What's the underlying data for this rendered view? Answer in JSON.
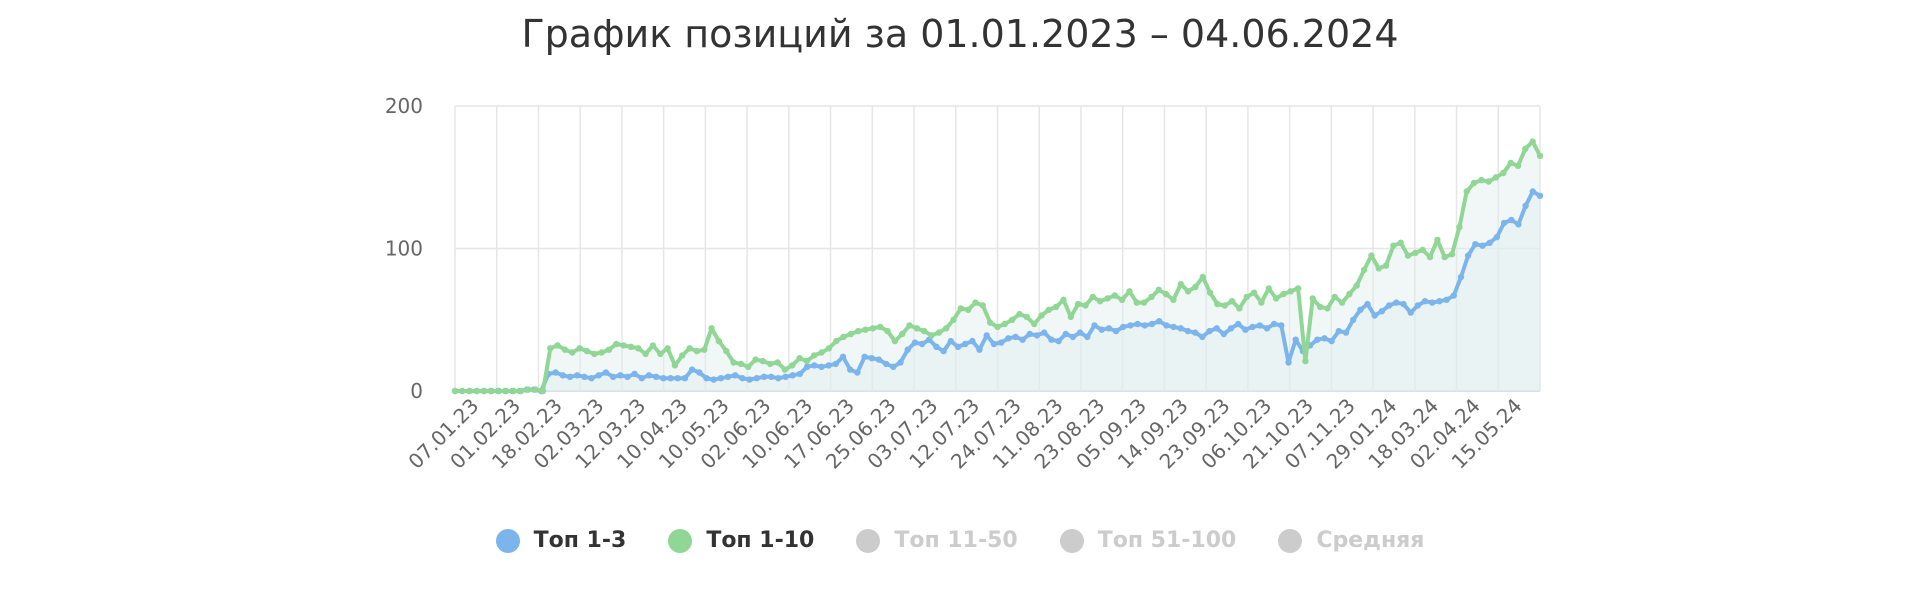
{
  "chart_data": {
    "type": "line",
    "title": "График позиций за 01.01.2023 – 04.06.2024",
    "ylim": [
      0,
      200
    ],
    "yticks": [
      0,
      100,
      200
    ],
    "x_tick_labels": [
      "07.01.23",
      "01.02.23",
      "18.02.23",
      "02.03.23",
      "12.03.23",
      "10.04.23",
      "10.05.23",
      "02.06.23",
      "10.06.23",
      "17.06.23",
      "25.06.23",
      "03.07.23",
      "12.07.23",
      "24.07.23",
      "11.08.23",
      "23.08.23",
      "05.09.23",
      "14.09.23",
      "23.09.23",
      "06.10.23",
      "21.10.23",
      "07.11.23",
      "29.01.24",
      "18.03.24",
      "02.04.24",
      "15.05.24"
    ],
    "grid": true,
    "legend_position": "bottom",
    "series": [
      {
        "name": "Топ 1-3",
        "color": "#7cb5ec",
        "visible": true,
        "values": [
          0,
          0,
          0,
          0,
          0,
          0,
          0,
          0,
          0,
          0,
          1,
          1,
          0,
          12,
          13,
          11,
          10,
          11,
          10,
          9,
          11,
          13,
          10,
          11,
          10,
          12,
          9,
          11,
          10,
          9,
          9,
          9,
          9,
          15,
          13,
          9,
          8,
          9,
          10,
          11,
          9,
          8,
          9,
          10,
          10,
          9,
          10,
          11,
          12,
          17,
          18,
          17,
          18,
          19,
          24,
          15,
          13,
          24,
          23,
          22,
          19,
          17,
          20,
          29,
          34,
          33,
          36,
          31,
          28,
          35,
          31,
          33,
          35,
          29,
          39,
          33,
          34,
          37,
          38,
          36,
          40,
          39,
          41,
          36,
          35,
          40,
          38,
          41,
          38,
          46,
          43,
          44,
          42,
          45,
          46,
          47,
          46,
          47,
          49,
          46,
          45,
          44,
          42,
          41,
          38,
          42,
          44,
          40,
          44,
          47,
          43,
          45,
          46,
          44,
          47,
          46,
          20,
          36,
          28,
          32,
          36,
          37,
          35,
          42,
          41,
          50,
          57,
          61,
          53,
          56,
          60,
          62,
          61,
          55,
          60,
          63,
          62,
          63,
          64,
          67,
          80,
          95,
          103,
          102,
          104,
          108,
          118,
          120,
          117,
          130,
          140,
          137
        ]
      },
      {
        "name": "Топ 1-10",
        "color": "#90d695",
        "visible": true,
        "values": [
          0,
          0,
          0,
          0,
          0,
          0,
          0,
          0,
          0,
          0,
          1,
          1,
          0,
          30,
          32,
          29,
          27,
          30,
          28,
          26,
          27,
          29,
          33,
          32,
          31,
          30,
          26,
          32,
          26,
          30,
          18,
          25,
          30,
          28,
          29,
          44,
          35,
          28,
          20,
          19,
          17,
          22,
          21,
          19,
          20,
          15,
          18,
          23,
          21,
          25,
          27,
          30,
          35,
          38,
          40,
          42,
          43,
          44,
          45,
          42,
          35,
          40,
          46,
          44,
          42,
          39,
          41,
          44,
          50,
          58,
          57,
          62,
          60,
          48,
          45,
          47,
          50,
          54,
          52,
          47,
          53,
          57,
          59,
          64,
          52,
          61,
          60,
          66,
          63,
          65,
          67,
          64,
          70,
          62,
          62,
          66,
          71,
          68,
          64,
          75,
          70,
          73,
          80,
          69,
          61,
          60,
          63,
          58,
          66,
          69,
          62,
          72,
          65,
          68,
          70,
          72,
          21,
          65,
          59,
          58,
          66,
          62,
          68,
          74,
          85,
          95,
          86,
          88,
          102,
          104,
          95,
          97,
          99,
          94,
          106,
          94,
          96,
          115,
          140,
          146,
          148,
          147,
          150,
          153,
          160,
          158,
          170,
          175,
          165
        ]
      },
      {
        "name": "Топ 11-50",
        "color": "#cccccc",
        "visible": false,
        "values": []
      },
      {
        "name": "Топ 51-100",
        "color": "#cccccc",
        "visible": false,
        "values": []
      },
      {
        "name": "Средняя",
        "color": "#cccccc",
        "visible": false,
        "values": []
      }
    ]
  },
  "colors": {
    "grid": "#e6e6e6",
    "axis_line": "#ccd6eb",
    "tick_text": "#666666",
    "title_text": "#333333",
    "legend_active_text": "#333333",
    "legend_hidden_text": "#cccccc",
    "area_fill": "#dfeeee"
  }
}
